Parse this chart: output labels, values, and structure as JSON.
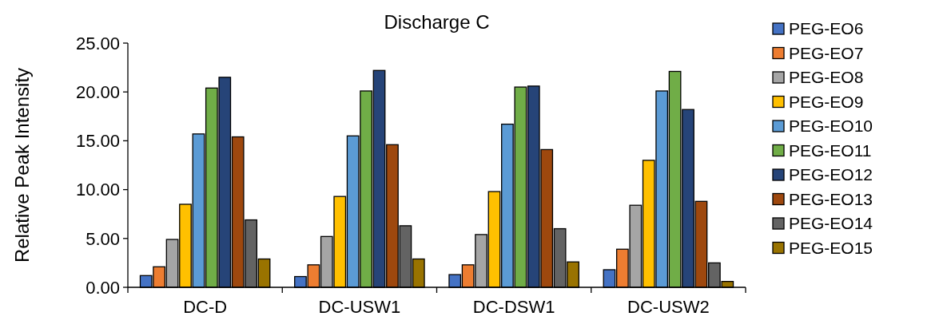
{
  "chart_data": {
    "type": "bar",
    "title": "Discharge C",
    "ylabel": "Relative Peak Intensity",
    "categories": [
      "DC-D",
      "DC-USW1",
      "DC-DSW1",
      "DC-USW2"
    ],
    "ylim": [
      0,
      25
    ],
    "yticks": [
      {
        "value": 0,
        "label": "0.00"
      },
      {
        "value": 5,
        "label": "5.00"
      },
      {
        "value": 10,
        "label": "10.00"
      },
      {
        "value": 15,
        "label": "15.00"
      },
      {
        "value": 20,
        "label": "20.00"
      },
      {
        "value": 25,
        "label": "25.00"
      }
    ],
    "grid": false,
    "legend": "right",
    "series": [
      {
        "name": "PEG-EO6",
        "color": "#4472c4",
        "values": [
          1.2,
          1.1,
          1.3,
          1.8
        ]
      },
      {
        "name": "PEG-EO7",
        "color": "#ed7d31",
        "values": [
          2.1,
          2.3,
          2.3,
          3.9
        ]
      },
      {
        "name": "PEG-EO8",
        "color": "#a5a5a5",
        "values": [
          4.9,
          5.2,
          5.4,
          8.4
        ]
      },
      {
        "name": "PEG-EO9",
        "color": "#ffc000",
        "values": [
          8.5,
          9.3,
          9.8,
          13.0
        ]
      },
      {
        "name": "PEG-EO10",
        "color": "#5b9bd5",
        "values": [
          15.7,
          15.5,
          16.7,
          20.1
        ]
      },
      {
        "name": "PEG-EO11",
        "color": "#70ad47",
        "values": [
          20.4,
          20.1,
          20.5,
          22.1
        ]
      },
      {
        "name": "PEG-EO12",
        "color": "#264478",
        "values": [
          21.5,
          22.2,
          20.6,
          18.2
        ]
      },
      {
        "name": "PEG-EO13",
        "color": "#9e480e",
        "values": [
          15.4,
          14.6,
          14.1,
          8.8
        ]
      },
      {
        "name": "PEG-EO14",
        "color": "#636363",
        "values": [
          6.9,
          6.3,
          6.0,
          2.5
        ]
      },
      {
        "name": "PEG-EO15",
        "color": "#997300",
        "values": [
          2.9,
          2.9,
          2.6,
          0.6
        ]
      }
    ]
  }
}
